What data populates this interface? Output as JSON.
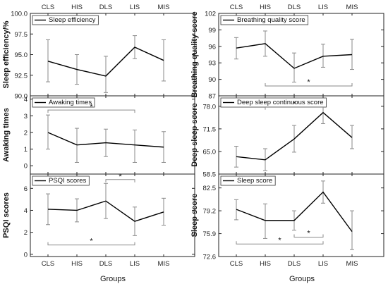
{
  "groups": [
    "CLS",
    "HIS",
    "DLS",
    "LIS",
    "MIS"
  ],
  "x_axis_label": "Groups",
  "chart_data": [
    {
      "type": "line",
      "title": "",
      "ylabel": "Sleep efficiency/%",
      "ylim": [
        90.0,
        100.0
      ],
      "yticks": [
        "90.0",
        "92.5",
        "95.0",
        "97.5",
        "100.0"
      ],
      "categories": [
        "CLS",
        "HIS",
        "DLS",
        "LIS",
        "MIS"
      ],
      "series": [
        {
          "name": "Sleep efficiency",
          "values": [
            94.2,
            93.2,
            92.4,
            95.9,
            94.3
          ],
          "err_low": [
            91.7,
            91.4,
            90.4,
            94.5,
            91.8
          ],
          "err_high": [
            96.8,
            95.0,
            94.8,
            97.3,
            96.8
          ]
        }
      ],
      "significance": []
    },
    {
      "type": "line",
      "title": "",
      "ylabel": "Breathing quality score",
      "ylim": [
        87,
        102
      ],
      "yticks": [
        "87",
        "90",
        "93",
        "96",
        "99",
        "102"
      ],
      "categories": [
        "CLS",
        "HIS",
        "DLS",
        "LIS",
        "MIS"
      ],
      "series": [
        {
          "name": "Breathing quality score",
          "values": [
            95.7,
            96.5,
            92.0,
            94.2,
            94.5
          ],
          "err_low": [
            93.7,
            94.2,
            89.5,
            92.2,
            91.8
          ],
          "err_high": [
            97.6,
            98.8,
            94.8,
            96.4,
            97.3
          ]
        }
      ],
      "significance": [
        {
          "from": "HIS",
          "to": "MIS",
          "label": "*",
          "level": 88.8,
          "direction": "down"
        }
      ]
    },
    {
      "type": "line",
      "title": "",
      "ylabel": "Awaking times",
      "ylim": [
        -0.5,
        4.2
      ],
      "yticks": [
        "0",
        "1",
        "2",
        "3",
        "4"
      ],
      "categories": [
        "CLS",
        "HIS",
        "DLS",
        "LIS",
        "MIS"
      ],
      "series": [
        {
          "name": "Awaking times",
          "values": [
            2.0,
            1.25,
            1.38,
            1.25,
            1.12
          ],
          "err_low": [
            1.0,
            0.2,
            0.55,
            0.2,
            0.2
          ],
          "err_high": [
            3.05,
            2.25,
            2.2,
            2.15,
            2.05
          ]
        }
      ],
      "significance": [
        {
          "from": "CLS",
          "to": "LIS",
          "label": "*",
          "level": 3.35,
          "direction": "up"
        }
      ]
    },
    {
      "type": "line",
      "title": "",
      "ylabel": "Deep sleep score",
      "ylim": [
        58.5,
        81.0
      ],
      "yticks": [
        "58.5",
        "65.0",
        "71.5",
        "78.0"
      ],
      "categories": [
        "CLS",
        "HIS",
        "DLS",
        "LIS",
        "MIS"
      ],
      "series": [
        {
          "name": "Deep sleep continuous score",
          "values": [
            63.5,
            62.6,
            68.6,
            76.2,
            69.0
          ],
          "err_low": [
            60.5,
            59.5,
            64.8,
            73.0,
            65.8
          ],
          "err_high": [
            66.5,
            65.8,
            72.5,
            79.2,
            72.5
          ]
        }
      ],
      "significance": [
        {
          "from": "HIS",
          "to": "LIS",
          "label": "*",
          "level": 77.8,
          "direction": "up"
        }
      ]
    },
    {
      "type": "line",
      "title": "",
      "ylabel": "PSQI scores",
      "ylim": [
        -0.2,
        7.3
      ],
      "yticks": [
        "0",
        "2",
        "4",
        "6"
      ],
      "categories": [
        "CLS",
        "HIS",
        "DLS",
        "LIS",
        "MIS"
      ],
      "series": [
        {
          "name": "PSQI scores",
          "values": [
            4.1,
            4.0,
            4.85,
            3.0,
            3.85
          ],
          "err_low": [
            2.7,
            2.95,
            3.25,
            1.7,
            2.65
          ],
          "err_high": [
            5.5,
            5.05,
            6.45,
            4.3,
            5.1
          ]
        }
      ],
      "significance": [
        {
          "from": "DLS",
          "to": "LIS",
          "label": "*",
          "level": 6.8,
          "direction": "up"
        },
        {
          "from": "CLS",
          "to": "LIS",
          "label": "*",
          "level": 0.85,
          "direction": "down"
        }
      ]
    },
    {
      "type": "line",
      "title": "",
      "ylabel": "Sleep score",
      "ylim": [
        72.6,
        84.5
      ],
      "yticks": [
        "72.6",
        "75.9",
        "79.2",
        "82.5"
      ],
      "categories": [
        "CLS",
        "HIS",
        "DLS",
        "LIS",
        "MIS"
      ],
      "series": [
        {
          "name": "Sleep score",
          "values": [
            79.4,
            77.8,
            77.8,
            81.9,
            76.2
          ],
          "err_low": [
            77.9,
            75.2,
            76.4,
            80.3,
            73.6
          ],
          "err_high": [
            80.8,
            80.2,
            79.2,
            83.5,
            79.2
          ]
        }
      ],
      "significance": [
        {
          "from": "DLS",
          "to": "LIS",
          "label": "*",
          "level": 75.4,
          "direction": "down"
        },
        {
          "from": "CLS",
          "to": "LIS",
          "label": "*",
          "level": 74.4,
          "direction": "down"
        }
      ]
    }
  ]
}
